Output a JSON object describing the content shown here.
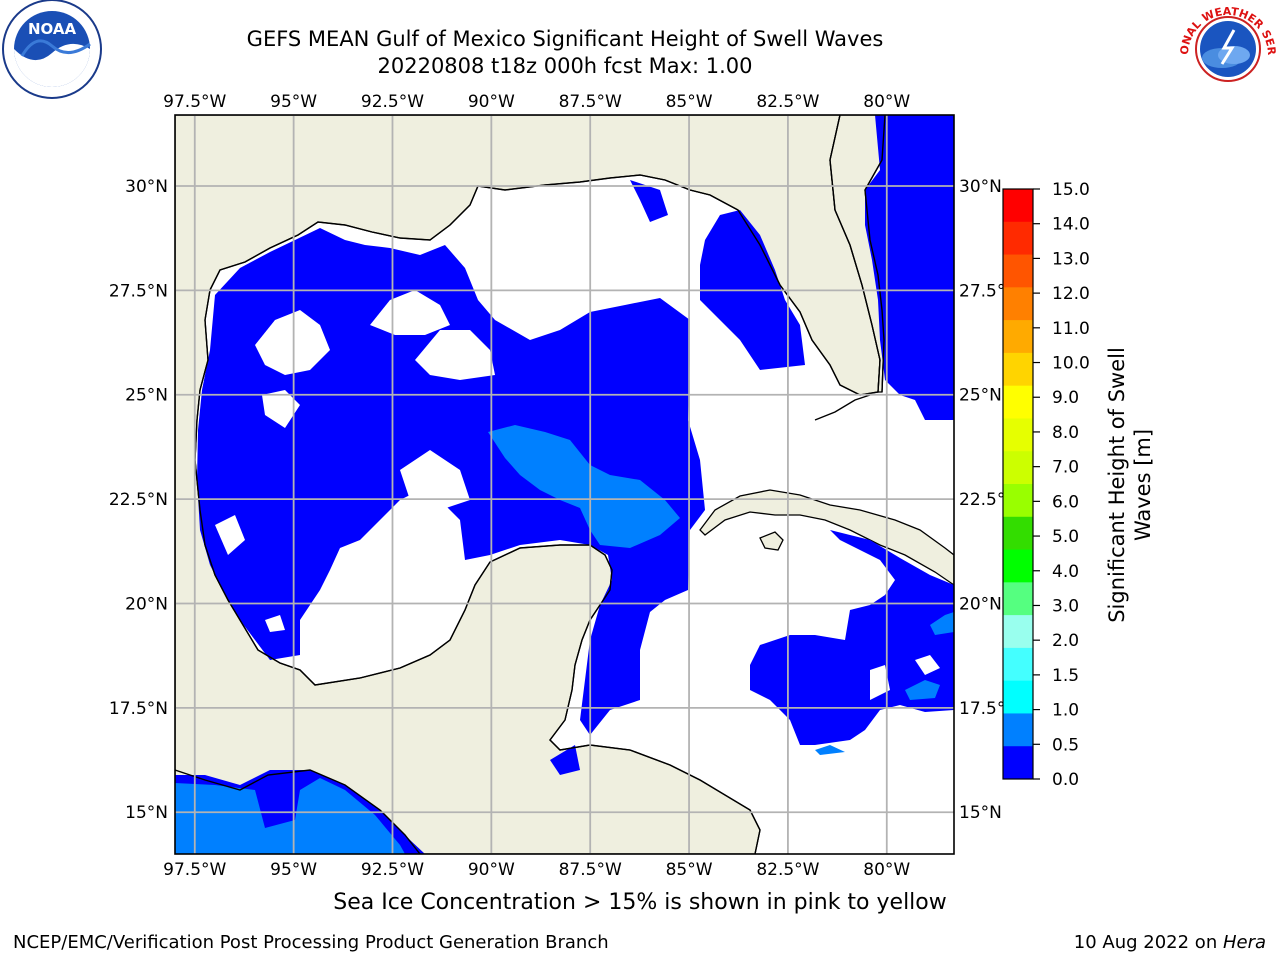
{
  "header": {
    "title": "GEFS MEAN Gulf of Mexico Significant Height of Swell Waves",
    "subtitle": "20220808 t18z 000h fcst   Max: 1.00"
  },
  "logos": {
    "left": "noara-logo",
    "left_text": "NOAA",
    "right": "nws-logo",
    "right_text": "NATIONAL WEATHER SERVICE"
  },
  "map": {
    "lon_labels": [
      "97.5°W",
      "95°W",
      "92.5°W",
      "90°W",
      "87.5°W",
      "85°W",
      "82.5°W",
      "80°W"
    ],
    "lat_labels": [
      "30°N",
      "27.5°N",
      "25°N",
      "22.5°N",
      "20°N",
      "17.5°N",
      "15°N"
    ],
    "lon_range": [
      -98,
      -78.3
    ],
    "lat_range": [
      14,
      31.7
    ],
    "colors": {
      "land": "#efefdf",
      "swell_0_0_5": "#0000ff",
      "swell_0_5_1_0": "#0080ff",
      "grid": "#b3b3b3"
    }
  },
  "colorbar": {
    "label_line1": "Significant Height of Swell",
    "label_line2": "Waves [m]",
    "ticks": [
      "15.0",
      "14.0",
      "13.0",
      "12.0",
      "11.0",
      "10.0",
      "9.0",
      "8.0",
      "7.0",
      "6.0",
      "5.0",
      "4.0",
      "3.0",
      "2.0",
      "1.5",
      "1.0",
      "0.5",
      "0.0"
    ],
    "colors": [
      "#ff0000",
      "#ff2a00",
      "#ff5500",
      "#ff8000",
      "#ffaa00",
      "#ffd400",
      "#ffff00",
      "#e6ff00",
      "#ccff00",
      "#99ff00",
      "#33dd00",
      "#00ff00",
      "#55ff80",
      "#99ffee",
      "#44ffff",
      "#00ffff",
      "#0080ff",
      "#0000ff"
    ]
  },
  "caption": "Sea Ice Concentration > 15% is shown in pink to yellow",
  "footer": {
    "left": "NCEP/EMC/Verification Post Processing Product Generation Branch",
    "right_date": "10 Aug 2022 on ",
    "right_host": "Hera"
  }
}
